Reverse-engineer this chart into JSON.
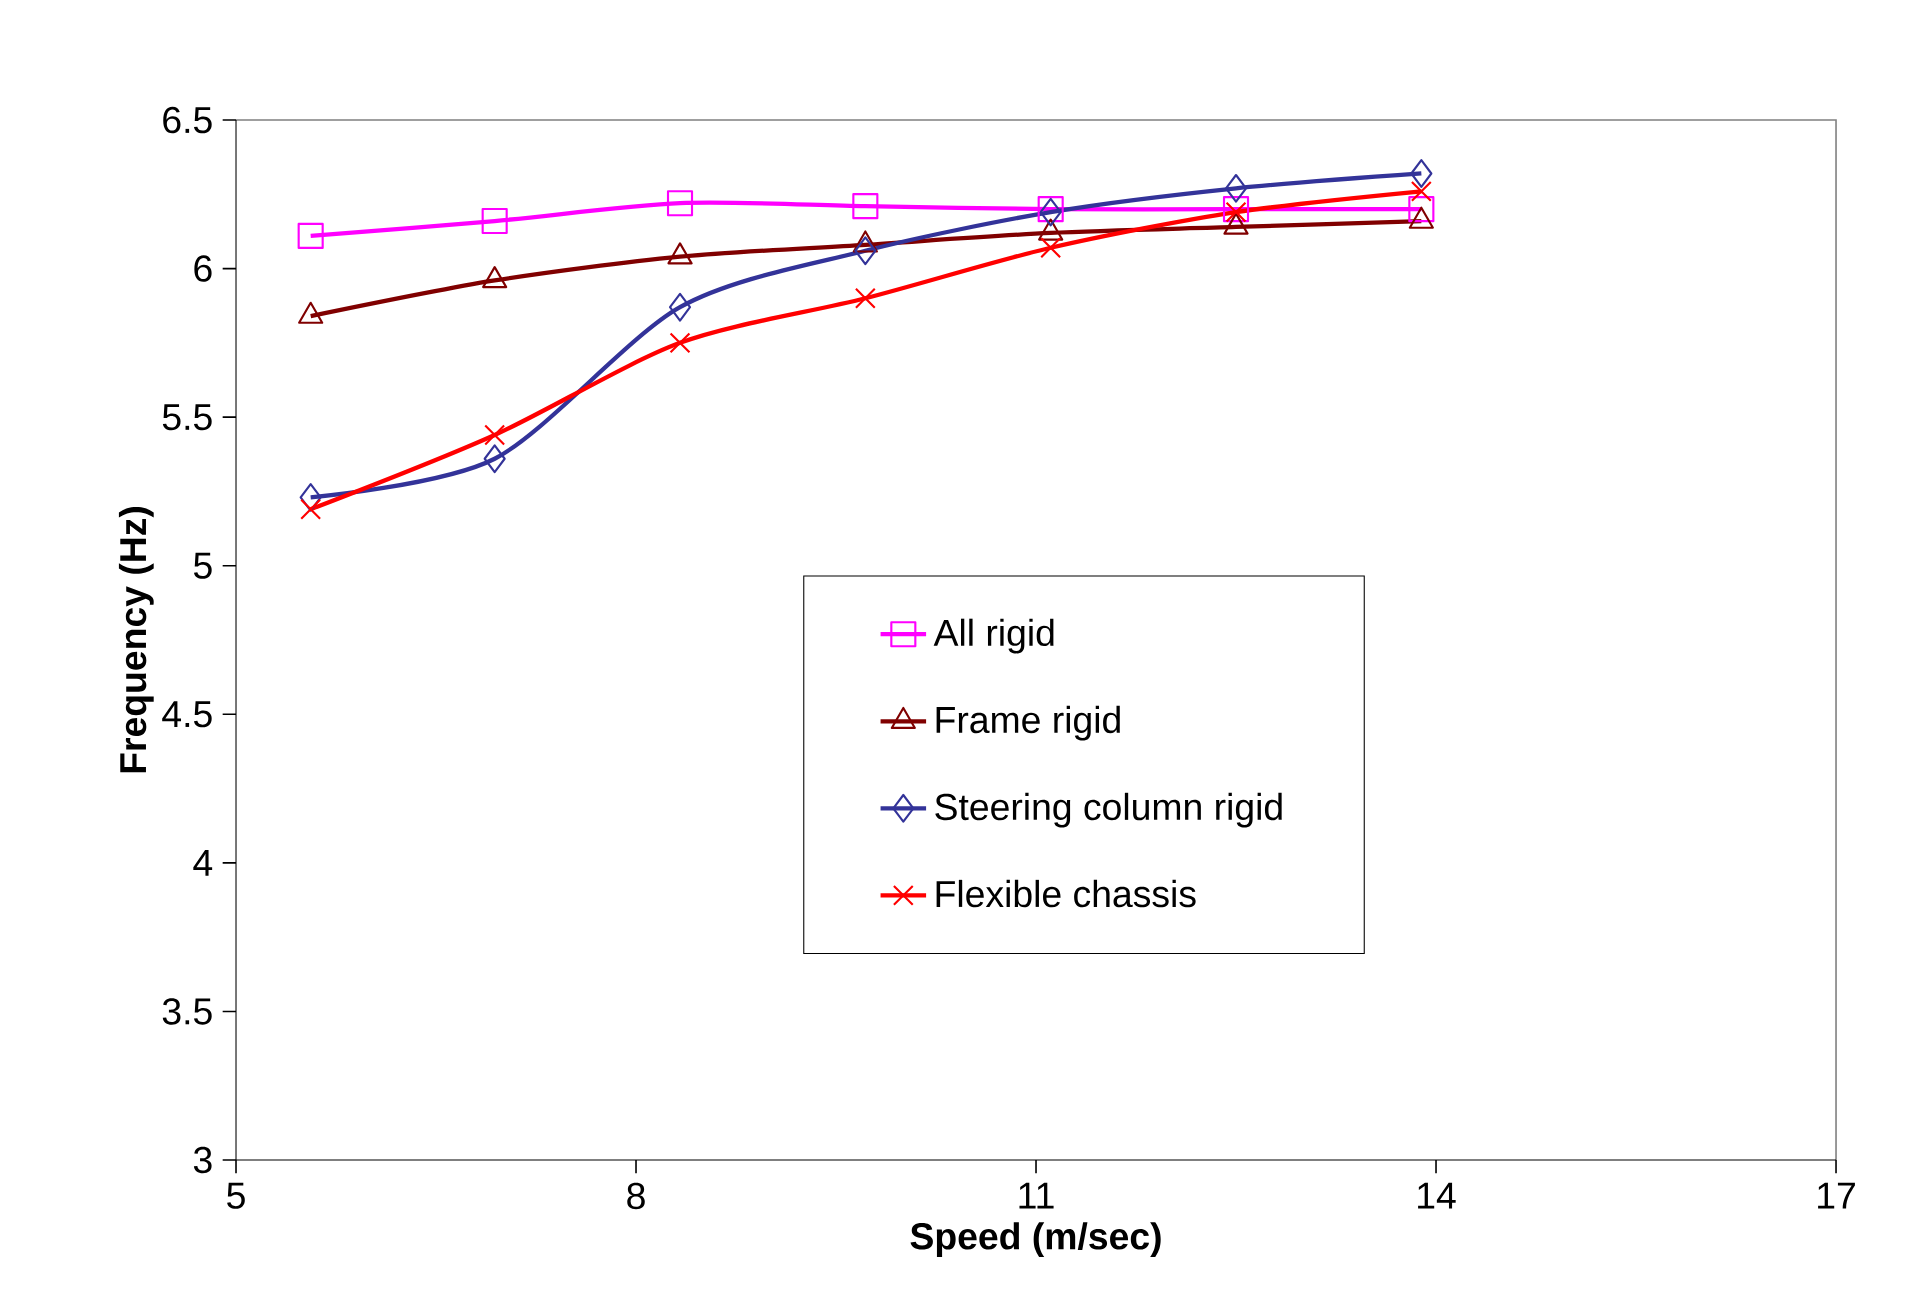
{
  "chart_data": {
    "type": "line",
    "xlabel": "Speed (m/sec)",
    "ylabel": "Frequency (Hz)",
    "x": [
      5.56,
      6.94,
      8.33,
      9.72,
      11.11,
      12.5,
      13.89
    ],
    "xlim": [
      5,
      17
    ],
    "xticks": [
      5,
      8,
      11,
      14,
      17
    ],
    "ylim": [
      3,
      6.5
    ],
    "yticks": [
      3,
      3.5,
      4,
      4.5,
      5,
      5.5,
      6,
      6.5
    ],
    "grid": false,
    "legend": "center",
    "line_style": "solid",
    "series": [
      {
        "name": "All rigid",
        "color": "#ff00ff",
        "marker": "square",
        "values": [
          6.11,
          6.16,
          6.22,
          6.21,
          6.2,
          6.2,
          6.2
        ]
      },
      {
        "name": "Frame rigid",
        "color": "#800000",
        "marker": "triangle",
        "values": [
          5.84,
          5.96,
          6.04,
          6.08,
          6.12,
          6.14,
          6.16
        ]
      },
      {
        "name": "Steering column rigid",
        "color": "#333399",
        "marker": "diamond",
        "values": [
          5.23,
          5.36,
          5.87,
          6.06,
          6.19,
          6.27,
          6.32
        ]
      },
      {
        "name": "Flexible chassis",
        "color": "#ff0000",
        "marker": "cross",
        "values": [
          5.19,
          5.44,
          5.75,
          5.9,
          6.07,
          6.19,
          6.26
        ]
      }
    ]
  }
}
